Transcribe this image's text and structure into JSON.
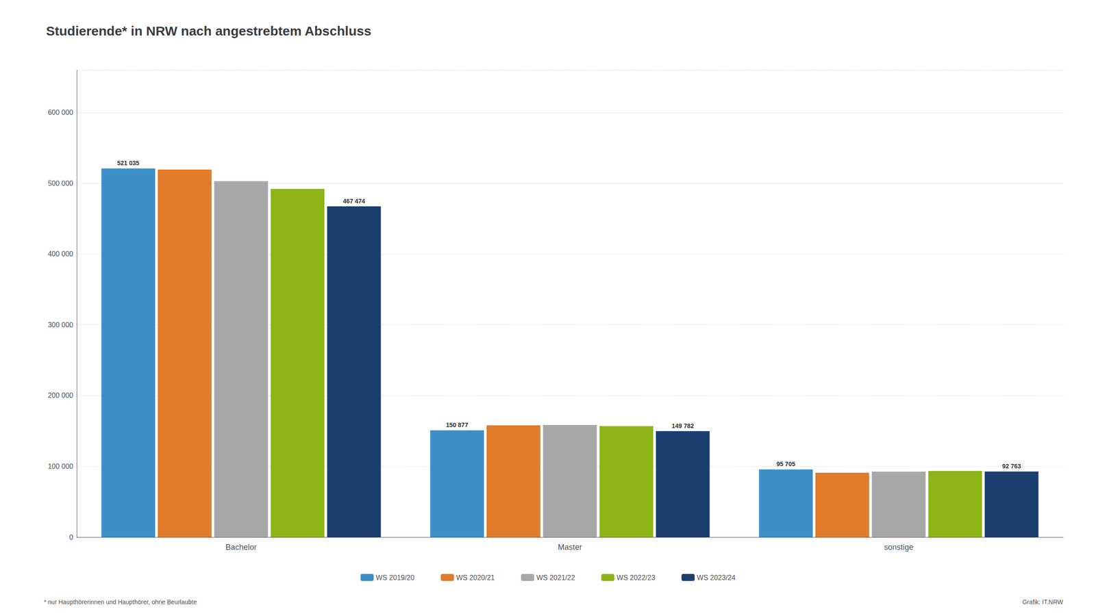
{
  "chart_data": {
    "type": "bar",
    "title": "Studierende* in NRW nach angestrebtem Abschluss",
    "categories": [
      "Bachelor",
      "Master",
      "sonstige"
    ],
    "series": [
      {
        "name": "WS 2019/20",
        "color": "#3D8EC9",
        "values": [
          521035,
          150877,
          95705
        ],
        "value_labels": [
          "521 035",
          "150 877",
          "95 705"
        ]
      },
      {
        "name": "WS 2020/21",
        "color": "#E07B2A",
        "values": [
          519500,
          158000,
          91000
        ]
      },
      {
        "name": "WS 2021/22",
        "color": "#A8A8A8",
        "values": [
          503000,
          158500,
          92500
        ]
      },
      {
        "name": "WS 2022/23",
        "color": "#8DB517",
        "values": [
          492000,
          157000,
          93500
        ]
      },
      {
        "name": "WS 2023/24",
        "color": "#1B3F6E",
        "values": [
          467474,
          149782,
          92763
        ],
        "value_labels": [
          "467 474",
          "149 782",
          "92 763"
        ]
      }
    ],
    "ylim": [
      0,
      660000
    ],
    "yticks": [
      0,
      {
        "value": 100000,
        "label": "100 000"
      },
      {
        "value": 200000,
        "label": "200 000"
      },
      {
        "value": 300000,
        "label": "300 000"
      },
      {
        "value": 400000,
        "label": "400 000"
      },
      {
        "value": 500000,
        "label": "500 000"
      },
      {
        "value": 600000,
        "label": "600 000"
      }
    ],
    "grid": true,
    "legend": "bottom",
    "footnote": "* nur Haupthörerinnen und Haupthörer, ohne Beurlaubte",
    "credit": "Grafik: IT.NRW"
  }
}
